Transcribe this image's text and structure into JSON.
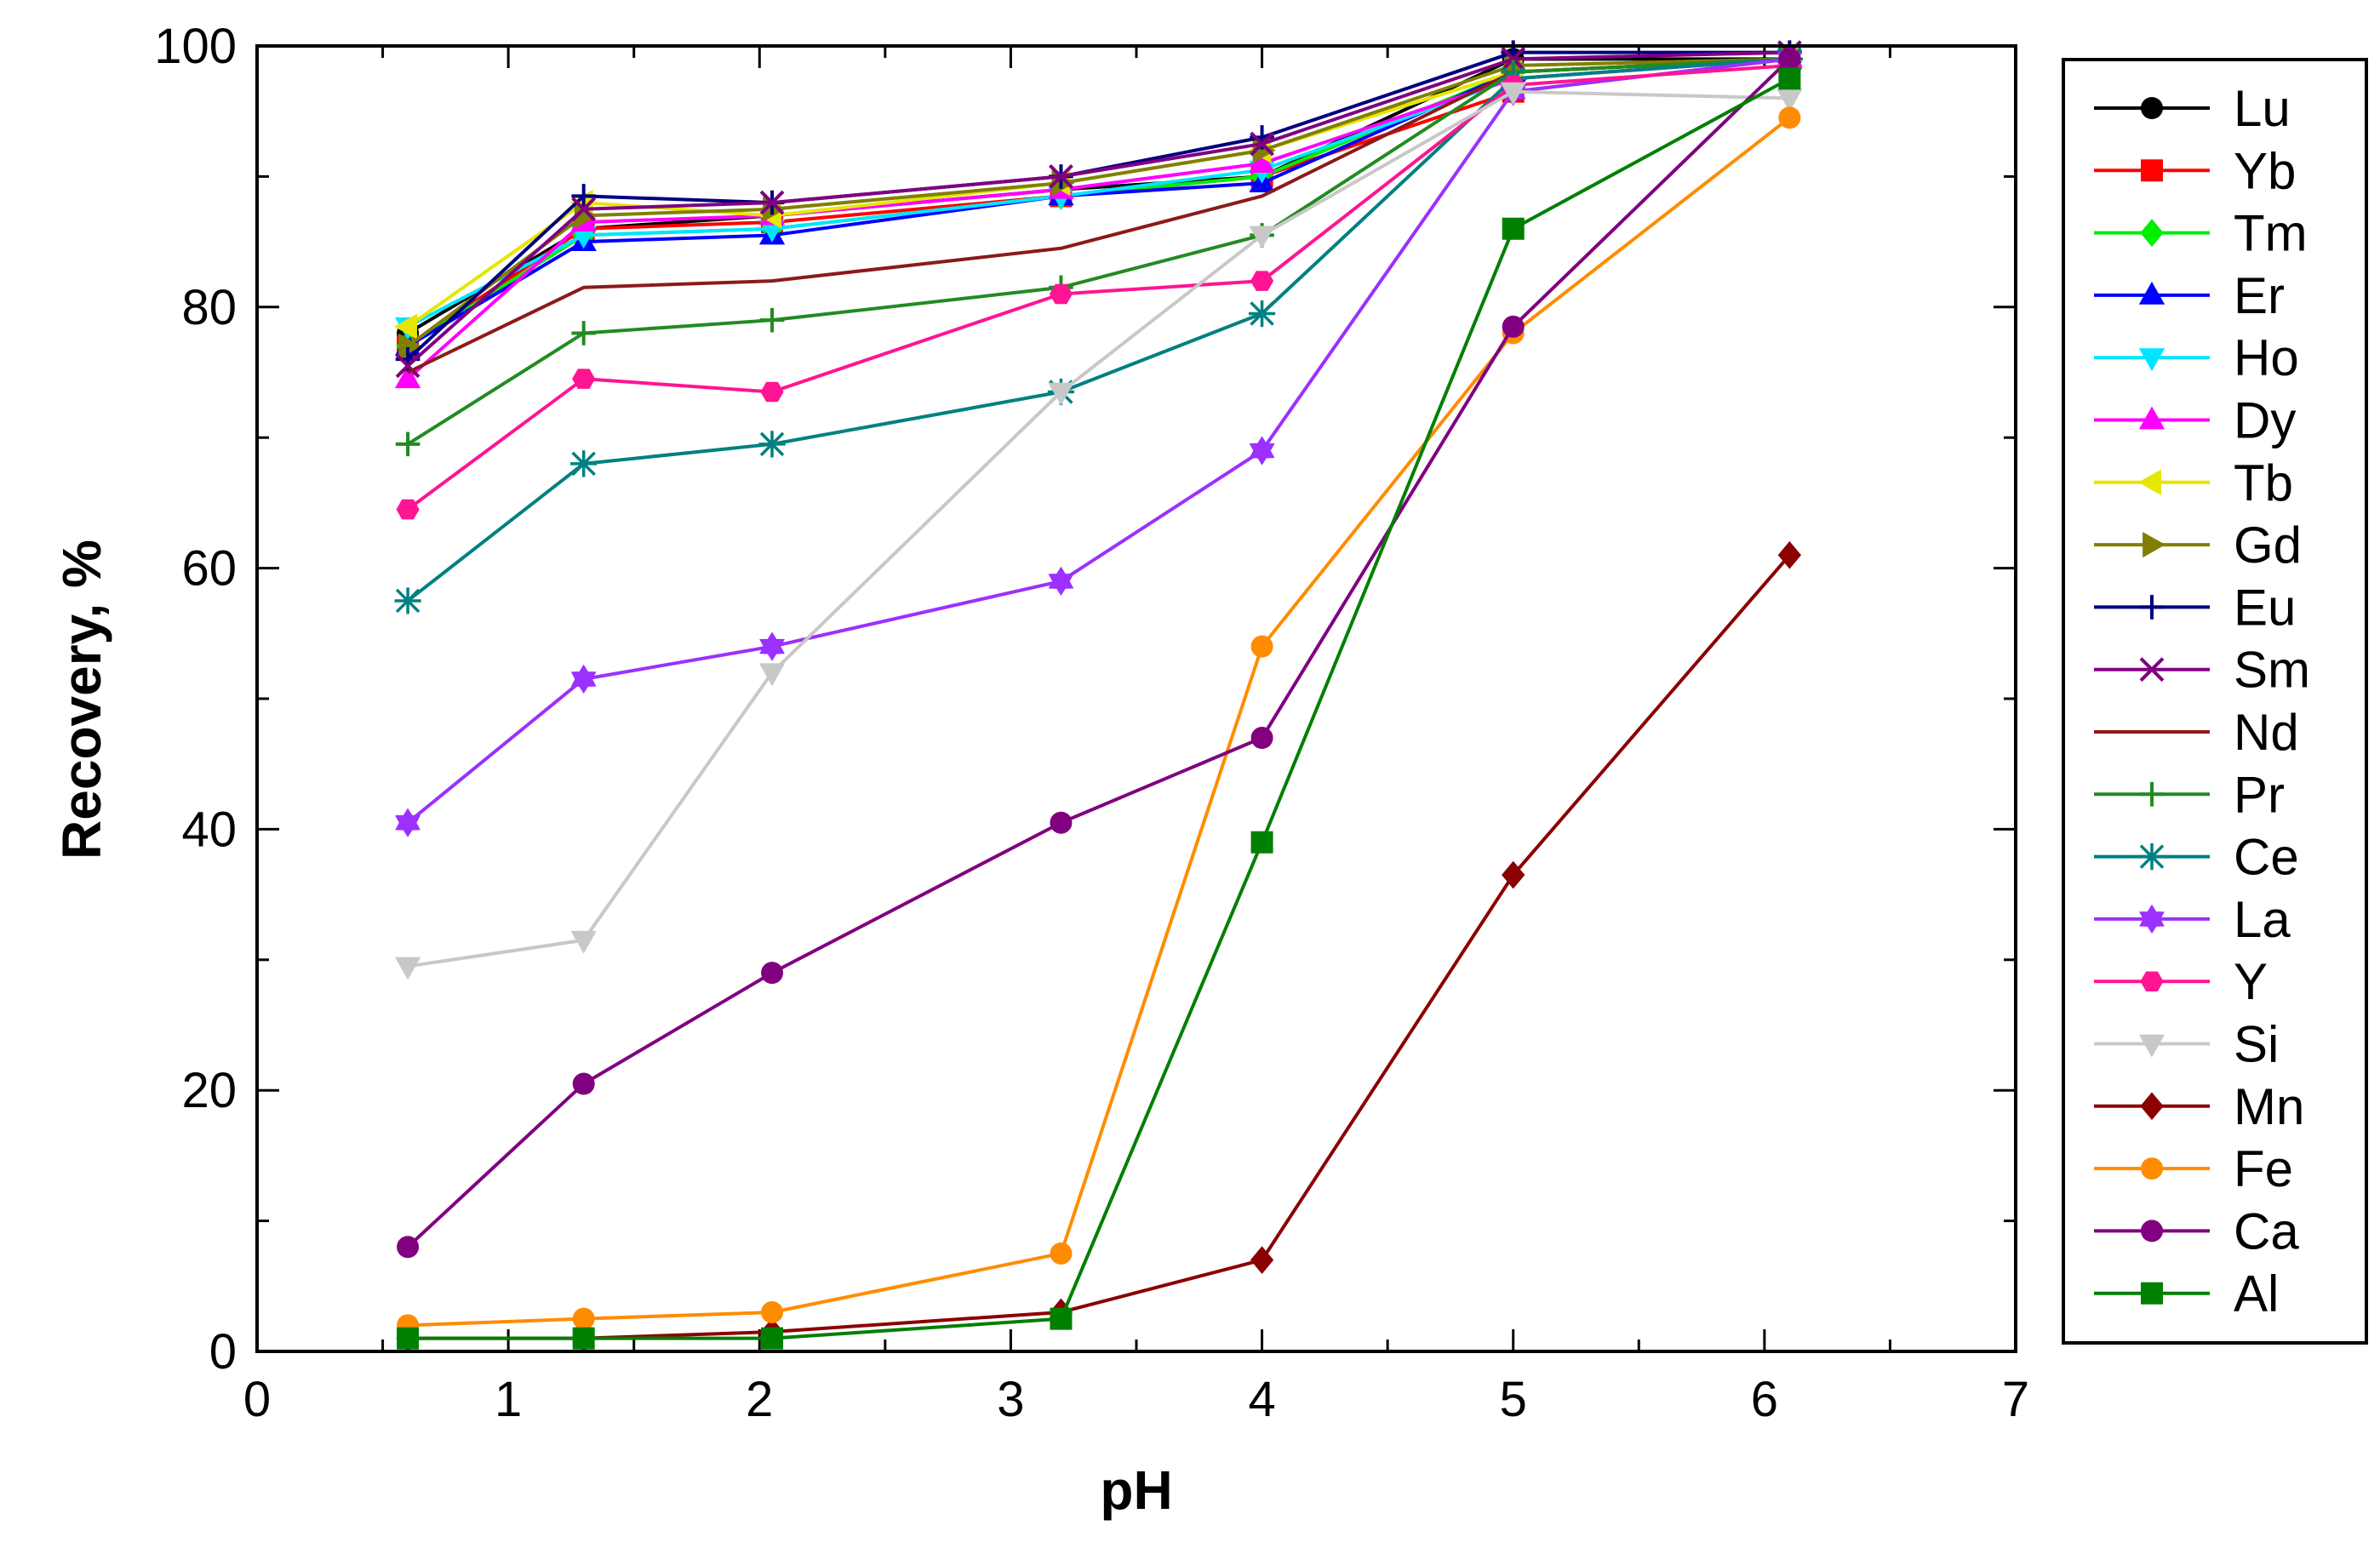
{
  "chart_data": {
    "type": "line",
    "title": "",
    "xlabel": "pH",
    "ylabel": "Recovery, %",
    "xlim": [
      0,
      7
    ],
    "ylim": [
      0,
      100
    ],
    "xticks": [
      0,
      1,
      2,
      3,
      4,
      5,
      6,
      7
    ],
    "yticks": [
      0,
      20,
      40,
      60,
      80,
      100
    ],
    "x": [
      0.6,
      1.3,
      2.05,
      3.2,
      4.0,
      5.0,
      6.1
    ],
    "legend_position": "right",
    "series": [
      {
        "name": "Lu",
        "color": "#000000",
        "marker": "circle",
        "values": [
          78,
          86,
          87,
          89,
          90,
          99,
          99
        ]
      },
      {
        "name": "Yb",
        "color": "#ff0000",
        "marker": "square",
        "values": [
          77,
          86,
          86.5,
          88.5,
          90,
          96.5,
          99
        ]
      },
      {
        "name": "Tm",
        "color": "#00ee00",
        "marker": "diamond",
        "values": [
          77,
          85.5,
          86,
          88.5,
          90,
          98,
          99
        ]
      },
      {
        "name": "Er",
        "color": "#0000ff",
        "marker": "triangle-up",
        "values": [
          77,
          85,
          85.5,
          88.5,
          89.5,
          98,
          99
        ]
      },
      {
        "name": "Ho",
        "color": "#00e5ff",
        "marker": "triangle-down",
        "values": [
          78.5,
          85.5,
          86,
          88.5,
          90.5,
          97.5,
          99
        ]
      },
      {
        "name": "Dy",
        "color": "#ff00ff",
        "marker": "triangle-up",
        "values": [
          74.5,
          86.5,
          87,
          89,
          91,
          97.5,
          99
        ]
      },
      {
        "name": "Tb",
        "color": "#e6e600",
        "marker": "triangle-left",
        "values": [
          78.5,
          88,
          87,
          89.5,
          92,
          98,
          99
        ]
      },
      {
        "name": "Gd",
        "color": "#808000",
        "marker": "triangle-right",
        "values": [
          77,
          87,
          87.5,
          89.5,
          92,
          98.5,
          99
        ]
      },
      {
        "name": "Eu",
        "color": "#000080",
        "marker": "plus",
        "values": [
          76,
          88.5,
          88,
          90,
          93,
          99.5,
          99.5
        ]
      },
      {
        "name": "Sm",
        "color": "#800080",
        "marker": "cross",
        "values": [
          75.5,
          87.5,
          88,
          90,
          92.5,
          99,
          99.5
        ]
      },
      {
        "name": "Nd",
        "color": "#8b1a1a",
        "marker": "none",
        "values": [
          75,
          81.5,
          82,
          84.5,
          88.5,
          98,
          99
        ]
      },
      {
        "name": "Pr",
        "color": "#228b22",
        "marker": "plus",
        "values": [
          69.5,
          78,
          79,
          81.5,
          85.5,
          98,
          99
        ]
      },
      {
        "name": "Ce",
        "color": "#008080",
        "marker": "asterisk",
        "values": [
          57.5,
          68,
          69.5,
          73.5,
          79.5,
          97.5,
          99
        ]
      },
      {
        "name": "La",
        "color": "#9b30ff",
        "marker": "star",
        "values": [
          40.5,
          51.5,
          54,
          59,
          69,
          96.5,
          99
        ]
      },
      {
        "name": "Y",
        "color": "#ff1493",
        "marker": "hexagon",
        "values": [
          64.5,
          74.5,
          73.5,
          81,
          82,
          97,
          98.5
        ]
      },
      {
        "name": "Si",
        "color": "#c8c8c8",
        "marker": "triangle-down",
        "values": [
          29.5,
          31.5,
          52,
          73.5,
          85.5,
          96.5,
          96
        ]
      },
      {
        "name": "Mn",
        "color": "#8b0000",
        "marker": "diamond",
        "values": [
          1,
          1,
          1.5,
          3,
          7,
          36.5,
          61
        ]
      },
      {
        "name": "Fe",
        "color": "#ff8c00",
        "marker": "circle",
        "values": [
          2,
          2.5,
          3,
          7.5,
          54,
          78,
          94.5
        ]
      },
      {
        "name": "Ca",
        "color": "#800080",
        "marker": "circle",
        "values": [
          8,
          20.5,
          29,
          40.5,
          47,
          78.5,
          99
        ]
      },
      {
        "name": "Al",
        "color": "#008000",
        "marker": "square",
        "values": [
          1,
          1,
          1,
          2.5,
          39,
          86,
          97.5
        ]
      }
    ]
  }
}
